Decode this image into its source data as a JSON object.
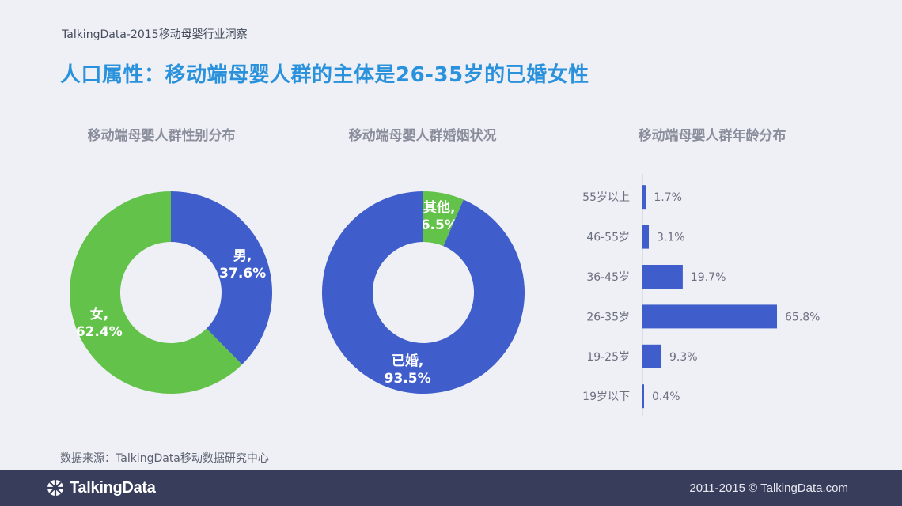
{
  "header": {
    "caption": "TalkingData-2015移动母婴行业洞察",
    "title": "人口属性：移动端母婴人群的主体是26-35岁的已婚女性"
  },
  "colors": {
    "blue": "#3f5dcb",
    "green": "#63c24a",
    "title_blue": "#2a92dc",
    "footer": "#383d5c"
  },
  "chart_data": [
    {
      "type": "pie",
      "title": "移动端母婴人群性别分布",
      "series": [
        {
          "name": "男",
          "value": 37.6,
          "label": "37.6%",
          "color": "#3f5dcb"
        },
        {
          "name": "女",
          "value": 62.4,
          "label": "62.4%",
          "color": "#63c24a"
        }
      ]
    },
    {
      "type": "pie",
      "title": "移动端母婴人群婚姻状况",
      "series": [
        {
          "name": "其他",
          "value": 6.5,
          "label": "6.5%",
          "color": "#63c24a"
        },
        {
          "name": "已婚",
          "value": 93.5,
          "label": "93.5%",
          "color": "#3f5dcb"
        }
      ]
    },
    {
      "type": "bar",
      "orientation": "horizontal",
      "title": "移动端母婴人群年龄分布",
      "categories": [
        "55岁以上",
        "46-55岁",
        "36-45岁",
        "26-35岁",
        "19-25岁",
        "19岁以下"
      ],
      "values": [
        1.7,
        3.1,
        19.7,
        65.8,
        9.3,
        0.4
      ],
      "value_labels": [
        "1.7%",
        "3.1%",
        "19.7%",
        "65.8%",
        "9.3%",
        "0.4%"
      ],
      "color": "#3f5dcb"
    }
  ],
  "source": "数据来源：TalkingData移动数据研究中心",
  "footer": {
    "logo_text": "TalkingData",
    "copyright": "2011-2015 © TalkingData.com"
  }
}
